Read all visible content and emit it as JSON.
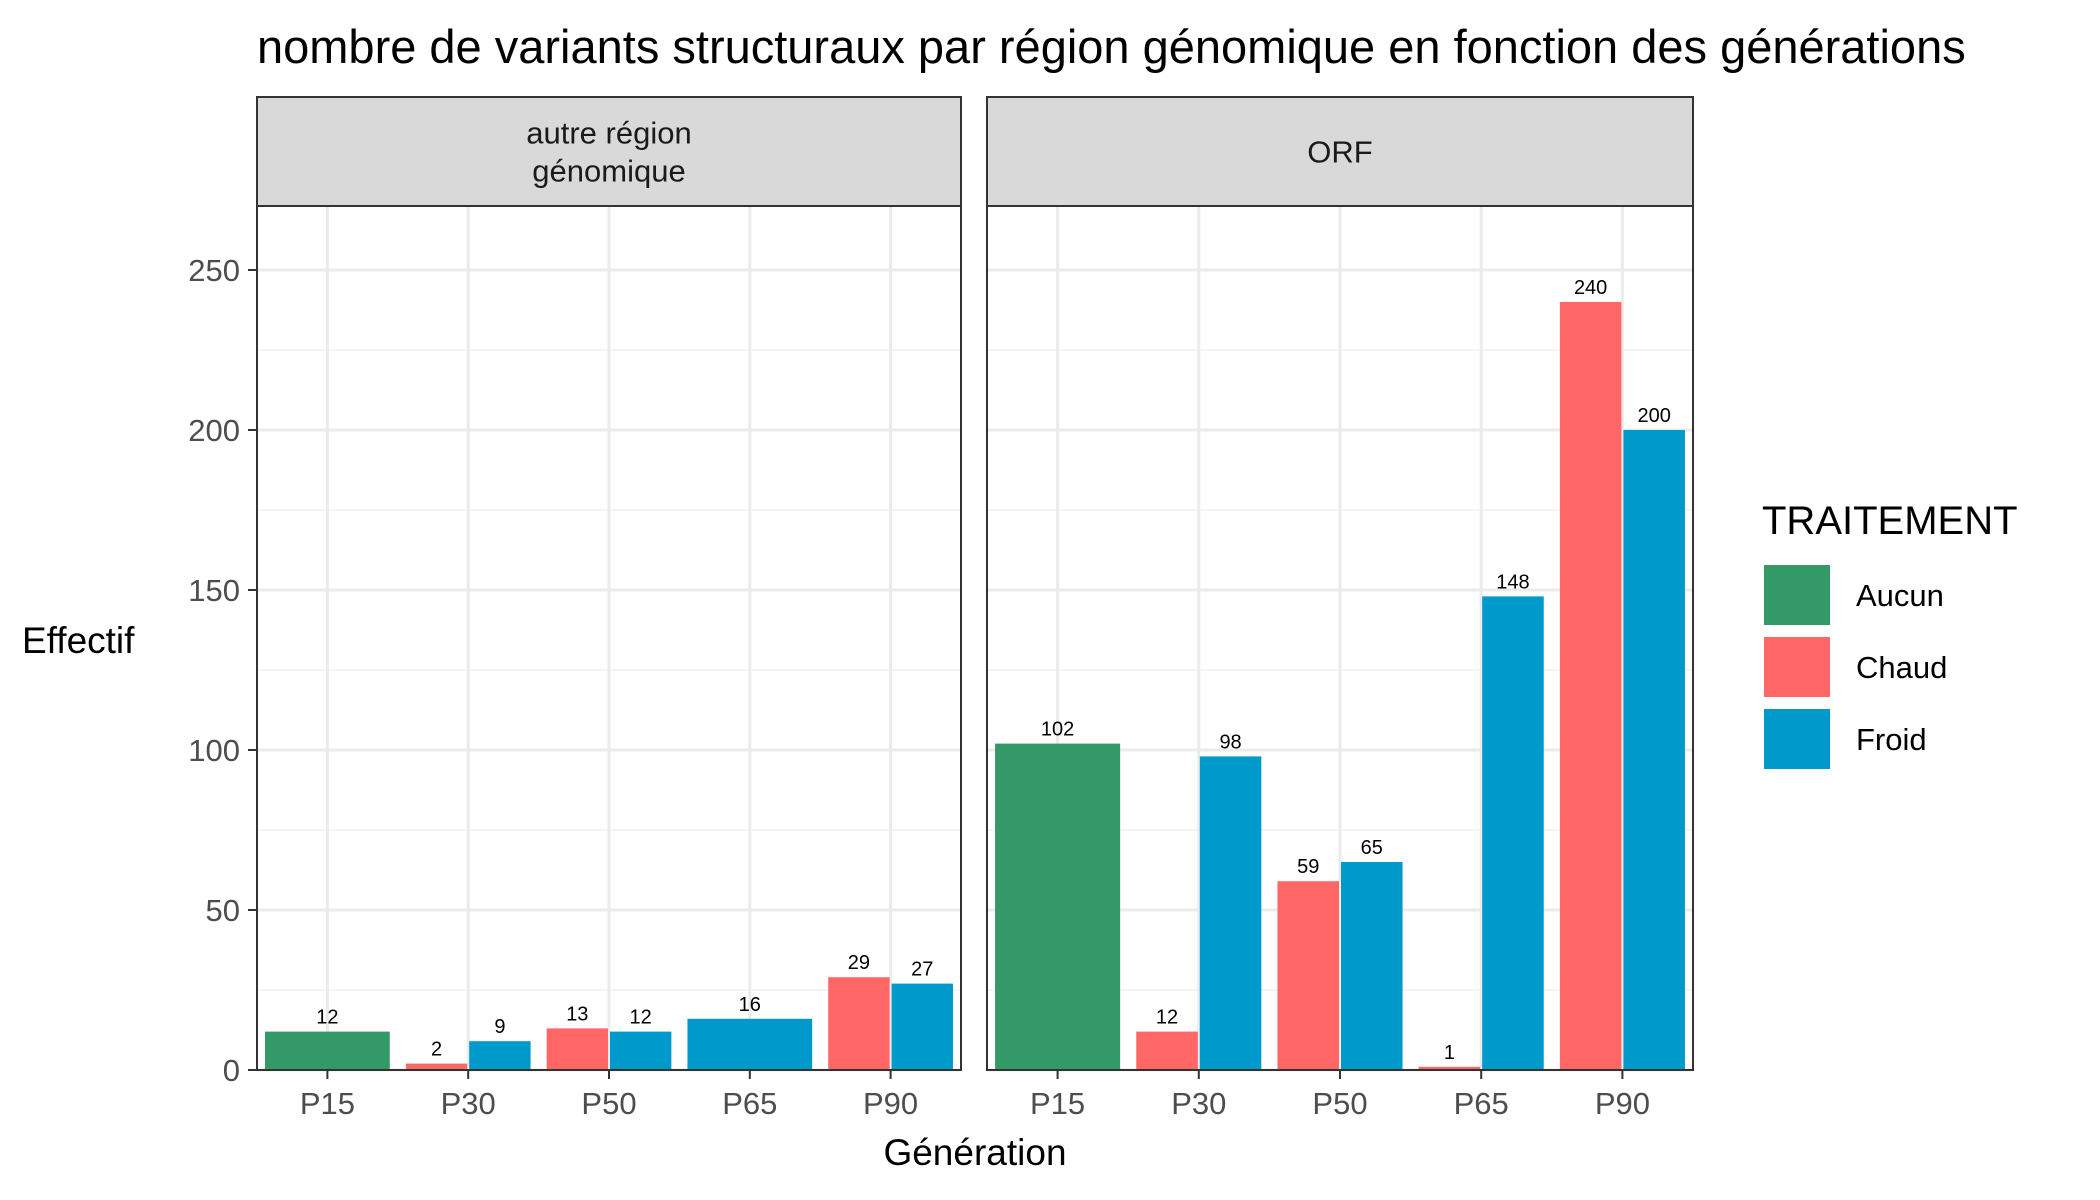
{
  "chart_data": {
    "type": "bar",
    "title": "nombre de variants structuraux par région génomique en fonction des générations",
    "xlabel": "Génération",
    "ylabel": "Effectif",
    "ylim": [
      0,
      270
    ],
    "yticks": [
      0,
      50,
      100,
      150,
      200,
      250
    ],
    "grid": true,
    "legend_position": "right",
    "categories": [
      "P15",
      "P30",
      "P50",
      "P65",
      "P90"
    ],
    "legend": {
      "title": "TRAITEMENT",
      "entries": [
        {
          "name": "Aucun",
          "color": "#339966"
        },
        {
          "name": "Chaud",
          "color": "#FF6666"
        },
        {
          "name": "Froid",
          "color": "#0099CC"
        }
      ]
    },
    "panels": [
      {
        "strip": [
          "autre région",
          "génomique"
        ],
        "bars": [
          {
            "category": "P15",
            "treatment": "Aucun",
            "value": 12,
            "label": "12"
          },
          {
            "category": "P30",
            "treatment": "Chaud",
            "value": 2,
            "label": "2"
          },
          {
            "category": "P30",
            "treatment": "Froid",
            "value": 9,
            "label": "9"
          },
          {
            "category": "P50",
            "treatment": "Chaud",
            "value": 13,
            "label": "13"
          },
          {
            "category": "P50",
            "treatment": "Froid",
            "value": 12,
            "label": "12"
          },
          {
            "category": "P65",
            "treatment": "Froid",
            "value": 16,
            "label": "16"
          },
          {
            "category": "P90",
            "treatment": "Chaud",
            "value": 29,
            "label": "29"
          },
          {
            "category": "P90",
            "treatment": "Froid",
            "value": 27,
            "label": "27"
          }
        ]
      },
      {
        "strip": [
          "ORF"
        ],
        "bars": [
          {
            "category": "P15",
            "treatment": "Aucun",
            "value": 102,
            "label": "102"
          },
          {
            "category": "P30",
            "treatment": "Chaud",
            "value": 12,
            "label": "12"
          },
          {
            "category": "P30",
            "treatment": "Froid",
            "value": 98,
            "label": "98"
          },
          {
            "category": "P50",
            "treatment": "Chaud",
            "value": 59,
            "label": "59"
          },
          {
            "category": "P50",
            "treatment": "Froid",
            "value": 65,
            "label": "65"
          },
          {
            "category": "P65",
            "treatment": "Chaud",
            "value": 1,
            "label": "1"
          },
          {
            "category": "P65",
            "treatment": "Froid",
            "value": 148,
            "label": "148"
          },
          {
            "category": "P90",
            "treatment": "Chaud",
            "value": 240,
            "label": "240"
          },
          {
            "category": "P90",
            "treatment": "Froid",
            "value": 200,
            "label": "200"
          }
        ]
      }
    ]
  }
}
